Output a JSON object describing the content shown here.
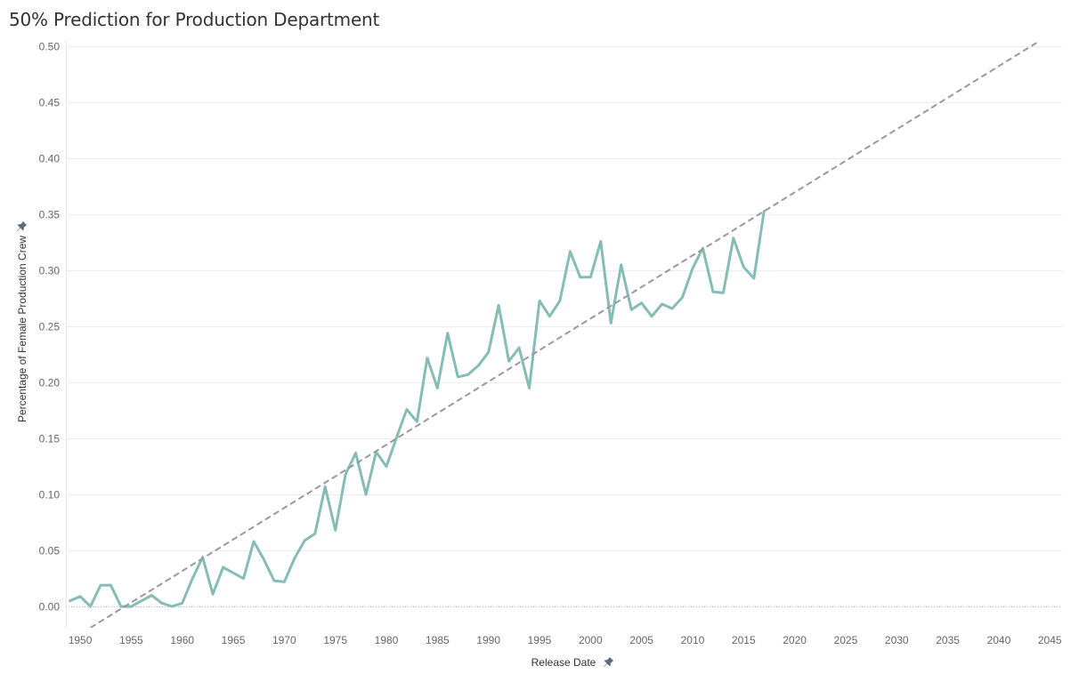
{
  "title": "50% Prediction for Production Department",
  "colors": {
    "line": "#86bcb6",
    "trend": "#999999",
    "grid": "#ececec",
    "zero_line": "#b8b8b8",
    "pin_icon": "#5c6b7a"
  },
  "chart_data": {
    "type": "line",
    "title": "50% Prediction for Production Department",
    "xlabel": "Release Date",
    "ylabel": "Percentage of Female Production Crew",
    "xlim": [
      1948.6,
      2046.2
    ],
    "ylim": [
      -0.019,
      0.505
    ],
    "x_ticks": [
      1950,
      1955,
      1960,
      1965,
      1970,
      1975,
      1980,
      1985,
      1990,
      1995,
      2000,
      2005,
      2010,
      2015,
      2020,
      2025,
      2030,
      2035,
      2040,
      2045
    ],
    "y_ticks": [
      0.0,
      0.05,
      0.1,
      0.15,
      0.2,
      0.25,
      0.3,
      0.35,
      0.4,
      0.45,
      0.5
    ],
    "y_tick_labels": [
      "0.00",
      "0.05",
      "0.10",
      "0.15",
      "0.20",
      "0.25",
      "0.30",
      "0.35",
      "0.40",
      "0.45",
      "0.50"
    ],
    "grid": true,
    "series": [
      {
        "x": [
          1949,
          1950,
          1951,
          1952,
          1953,
          1954,
          1955,
          1956,
          1957,
          1958,
          1959,
          1960,
          1961,
          1962,
          1963,
          1964,
          1965,
          1966,
          1967,
          1968,
          1969,
          1970,
          1971,
          1972,
          1973,
          1974,
          1975,
          1976,
          1977,
          1978,
          1979,
          1980,
          1981,
          1982,
          1983,
          1984,
          1985,
          1986,
          1987,
          1988,
          1989,
          1990,
          1991,
          1992,
          1993,
          1994,
          1995,
          1996,
          1997,
          1998,
          1999,
          2000,
          2001,
          2002,
          2003,
          2004,
          2005,
          2006,
          2007,
          2008,
          2009,
          2010,
          2011,
          2012,
          2013,
          2014,
          2015,
          2016,
          2017
        ],
        "values": [
          0.005,
          0.009,
          0.0,
          0.019,
          0.019,
          0.0,
          0.0,
          0.005,
          0.01,
          0.003,
          0.0,
          0.003,
          0.025,
          0.044,
          0.011,
          0.035,
          0.03,
          0.025,
          0.058,
          0.042,
          0.023,
          0.022,
          0.043,
          0.059,
          0.065,
          0.107,
          0.068,
          0.118,
          0.137,
          0.1,
          0.138,
          0.125,
          0.151,
          0.176,
          0.165,
          0.222,
          0.195,
          0.244,
          0.205,
          0.207,
          0.215,
          0.227,
          0.269,
          0.219,
          0.231,
          0.195,
          0.273,
          0.259,
          0.273,
          0.317,
          0.294,
          0.294,
          0.326,
          0.253,
          0.305,
          0.265,
          0.271,
          0.259,
          0.27,
          0.266,
          0.276,
          0.302,
          0.32,
          0.281,
          0.28,
          0.329,
          0.303,
          0.293,
          0.353
        ]
      }
    ],
    "trend_line": {
      "x": [
        1951,
        2044
      ],
      "values": [
        -0.019,
        0.505
      ]
    }
  }
}
